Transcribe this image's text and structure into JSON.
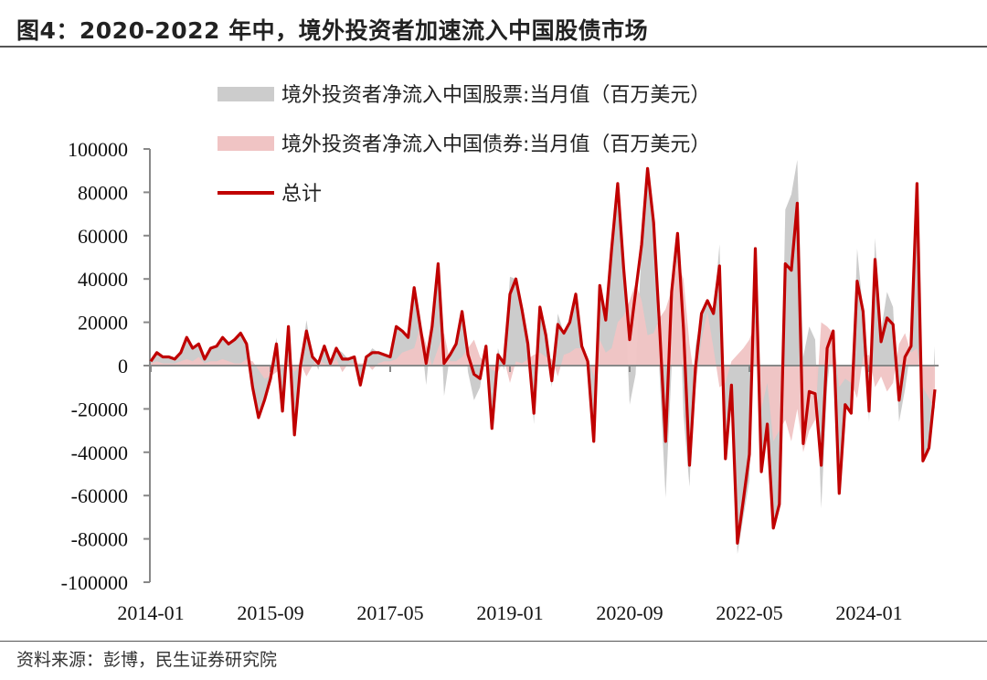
{
  "title": "图4：2020-2022 年中，境外投资者加速流入中国股债市场",
  "source": "资料来源：彭博，民生证券研究院",
  "colors": {
    "stocks": "#cccccc",
    "bonds": "#f0c4c4",
    "total": "#c00000",
    "axis": "#888888"
  },
  "chart_data": {
    "type": "area",
    "title": "图4：2020-2022 年中，境外投资者加速流入中国股债市场",
    "xlabel": "",
    "ylabel": "",
    "ylim": [
      -100000,
      100000
    ],
    "yticks": [
      "100000",
      "80000",
      "60000",
      "40000",
      "20000",
      "0",
      "-20000",
      "-40000",
      "-60000",
      "-80000",
      "-100000"
    ],
    "ytick_values": [
      100000,
      80000,
      60000,
      40000,
      20000,
      0,
      -20000,
      -40000,
      -60000,
      -80000,
      -100000
    ],
    "xticks": [
      "2014-01",
      "2015-09",
      "2017-05",
      "2019-01",
      "2020-09",
      "2022-05",
      "2024-01"
    ],
    "xtick_index": [
      0,
      20,
      40,
      60,
      80,
      100,
      120
    ],
    "x_start": "2014-01",
    "x_end": "2024-12",
    "legend_position": "top-left",
    "legend": [
      "境外投资者净流入中国股票:当月值（百万美元）",
      "境外投资者净流入中国债券:当月值（百万美元）",
      "总计"
    ],
    "series": [
      {
        "name": "境外投资者净流入中国债券:当月值（百万美元）",
        "type": "area",
        "values": [
          1000,
          2000,
          1000,
          1000,
          1000,
          2000,
          3000,
          2000,
          4000,
          1000,
          2000,
          2000,
          3000,
          2000,
          1000,
          1000,
          3000,
          2000,
          -2000,
          -6000,
          -5000,
          -3000,
          -1000,
          2000,
          -3000,
          1000,
          -5000,
          0,
          3000,
          1000,
          0,
          3000,
          -3000,
          1000,
          1000,
          1000,
          1000,
          -2000,
          1000,
          2000,
          2000,
          3000,
          6000,
          7000,
          8000,
          18000,
          10000,
          0,
          8000,
          15000,
          2000,
          2000,
          4000,
          8000,
          12000,
          4000,
          1000,
          -2000,
          -3000,
          3000,
          -8000,
          2000,
          1000,
          3000,
          5000,
          6000,
          4000,
          3000,
          -5000,
          5000,
          6000,
          8000,
          8000,
          4000,
          -5000,
          12000,
          6000,
          8000,
          20000,
          23000,
          30000,
          38000,
          30000,
          14000,
          15000,
          22000,
          26000,
          35000,
          48000,
          40000,
          10000,
          -10000,
          12000,
          25000,
          8000,
          -10000,
          -8000,
          2000,
          5000,
          8000,
          12000,
          20000,
          -20000,
          -8000,
          -35000,
          -30000,
          -25000,
          -35000,
          -20000,
          -40000,
          -30000,
          -25000,
          20000,
          18000,
          15000,
          -10000,
          -6000,
          -8000,
          -15000,
          4000,
          5000,
          -10000,
          -5000,
          -12000,
          -8000,
          10000,
          15000,
          6000,
          8000,
          -10000,
          -15000,
          -20000
        ]
      },
      {
        "name": "总计",
        "type": "line",
        "values": [
          2000,
          6000,
          4000,
          4000,
          3000,
          6000,
          13000,
          8000,
          10000,
          3000,
          8000,
          9000,
          13000,
          10000,
          12000,
          15000,
          10000,
          -10000,
          -24000,
          -16000,
          -6000,
          10000,
          -21000,
          18000,
          -32000,
          0,
          16000,
          4000,
          1000,
          9000,
          1000,
          8000,
          3000,
          3000,
          4000,
          -9000,
          4000,
          6000,
          6000,
          5000,
          4000,
          18000,
          16000,
          13000,
          36000,
          18000,
          1000,
          18000,
          47000,
          1000,
          5000,
          10000,
          25000,
          5000,
          -4000,
          -6000,
          9000,
          -29000,
          5000,
          1000,
          33000,
          40000,
          26000,
          10000,
          -22000,
          27000,
          14000,
          -7000,
          19000,
          15000,
          20000,
          33000,
          9000,
          2000,
          -35000,
          37000,
          21000,
          54000,
          84000,
          45000,
          12000,
          34000,
          56000,
          91000,
          66000,
          17000,
          -35000,
          34000,
          61000,
          17000,
          -46000,
          -1000,
          24000,
          30000,
          24000,
          46000,
          -43000,
          -9000,
          -82000,
          -62000,
          -41000,
          54000,
          -49000,
          -27000,
          -75000,
          -64000,
          47000,
          44000,
          75000,
          -36000,
          -12000,
          -13000,
          -46000,
          8000,
          16000,
          -59000,
          -18000,
          -22000,
          39000,
          25000,
          -21000,
          49000,
          11000,
          22000,
          19000,
          -16000,
          4000,
          9000,
          84000,
          -44000,
          -38000,
          -11000
        ]
      }
    ],
    "stocks_note_derived": "stocks = total - bonds"
  }
}
